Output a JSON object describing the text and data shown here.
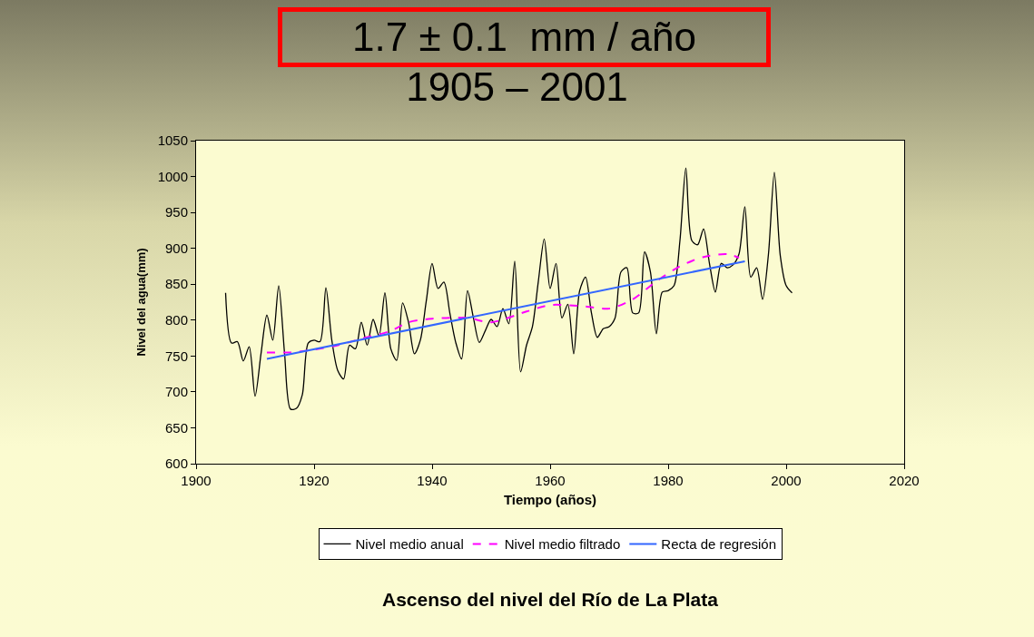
{
  "chart_data": {
    "type": "line",
    "title": "1.7 ± 0.1  mm / año",
    "subtitle": "1905 – 2001",
    "xlabel": "Tiempo (años)",
    "ylabel": "Nivel del agua(mm)",
    "annotations": [
      "Ascenso del nivel del Río de La Plata"
    ],
    "x": [
      1905,
      1906,
      1907,
      1908,
      1909,
      1910,
      1911,
      1912,
      1913,
      1914,
      1915,
      1916,
      1917,
      1918,
      1919,
      1920,
      1921,
      1922,
      1923,
      1924,
      1925,
      1926,
      1927,
      1928,
      1929,
      1930,
      1931,
      1932,
      1933,
      1934,
      1935,
      1936,
      1937,
      1938,
      1939,
      1940,
      1941,
      1942,
      1943,
      1944,
      1945,
      1946,
      1947,
      1948,
      1949,
      1950,
      1951,
      1952,
      1953,
      1954,
      1955,
      1956,
      1957,
      1958,
      1959,
      1960,
      1961,
      1962,
      1963,
      1964,
      1965,
      1966,
      1967,
      1968,
      1969,
      1970,
      1971,
      1972,
      1973,
      1974,
      1975,
      1976,
      1977,
      1978,
      1979,
      1980,
      1981,
      1982,
      1983,
      1984,
      1985,
      1986,
      1987,
      1988,
      1989,
      1990,
      1991,
      1992,
      1993,
      1994,
      1995,
      1996,
      1997,
      1998,
      1999,
      2000,
      2001
    ],
    "series": [
      {
        "name": "Nivel medio anual",
        "color": "#000000",
        "line_style": "solid",
        "values": [
          838,
          768,
          770,
          743,
          763,
          694,
          753,
          807,
          772,
          848,
          753,
          676,
          677,
          696,
          768,
          772,
          770,
          845,
          772,
          730,
          718,
          765,
          760,
          797,
          765,
          801,
          778,
          838,
          760,
          744,
          824,
          797,
          753,
          772,
          826,
          879,
          844,
          853,
          810,
          769,
          746,
          841,
          803,
          769,
          785,
          801,
          791,
          816,
          795,
          882,
          728,
          765,
          791,
          854,
          913,
          844,
          879,
          803,
          822,
          753,
          841,
          860,
          810,
          776,
          788,
          791,
          803,
          867,
          873,
          810,
          810,
          895,
          867,
          781,
          839,
          841,
          848,
          911,
          1012,
          911,
          905,
          927,
          879,
          839,
          879,
          873,
          877,
          892,
          958,
          860,
          873,
          829,
          892,
          1006,
          890,
          848,
          838
        ]
      },
      {
        "name": "Nivel medio filtrado",
        "color": "#ff00ff",
        "line_style": "dashed",
        "x": [
          1912,
          1916,
          1920,
          1924,
          1928,
          1933,
          1936,
          1940,
          1946,
          1950,
          1956,
          1960,
          1966,
          1970,
          1974,
          1978,
          1982,
          1986,
          1990,
          1992
        ],
        "values": [
          755,
          755,
          759,
          765,
          774,
          785,
          797,
          802,
          803,
          797,
          812,
          821,
          819,
          816,
          829,
          854,
          875,
          888,
          892,
          887
        ]
      },
      {
        "name": "Recta de regresión",
        "color": "#3366ff",
        "line_style": "solid",
        "x": [
          1912,
          1993
        ],
        "values": [
          746,
          882
        ]
      }
    ],
    "xlim": [
      1900,
      2020
    ],
    "xticks": [
      1900,
      1920,
      1940,
      1960,
      1980,
      2000,
      2020
    ],
    "ylim": [
      600,
      1050
    ],
    "yticks": [
      600,
      650,
      700,
      750,
      800,
      850,
      900,
      950,
      1000,
      1050
    ],
    "legend": "bottom",
    "marker": "none"
  }
}
